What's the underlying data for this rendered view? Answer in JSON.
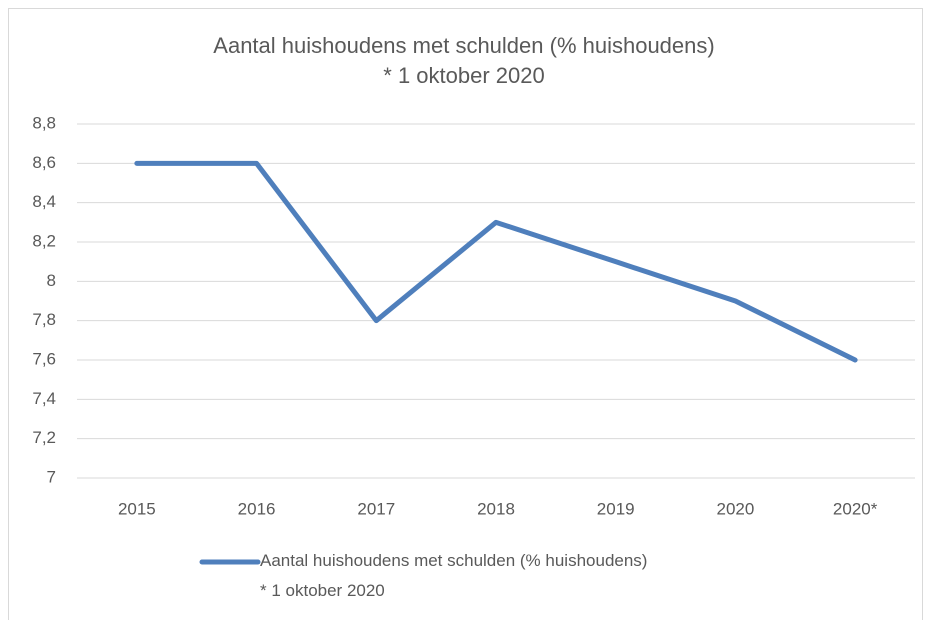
{
  "chart_data": {
    "type": "line",
    "title": "Aantal huishoudens met schulden (% huishoudens)\n* 1 oktober 2020",
    "categories": [
      "2015",
      "2016",
      "2017",
      "2018",
      "2019",
      "2020",
      "2020*"
    ],
    "series": [
      {
        "name": "Aantal huishoudens met schulden (% huishoudens)\n* 1 oktober 2020",
        "color": "#4f7fbc",
        "values": [
          8.6,
          8.6,
          7.8,
          8.3,
          8.1,
          7.9,
          7.6
        ]
      }
    ],
    "ylim": [
      7,
      8.8
    ],
    "yticks": [
      7,
      {
        "value": 7.2,
        "label": "7,2"
      },
      {
        "value": 7.4,
        "label": "7,4"
      },
      {
        "value": 7.6,
        "label": "7,6"
      },
      {
        "value": 7.8,
        "label": "7,8"
      },
      8,
      {
        "value": 8.2,
        "label": "8,2"
      },
      {
        "value": 8.4,
        "label": "8,4"
      },
      {
        "value": 8.6,
        "label": "8,6"
      },
      {
        "value": 8.8,
        "label": "8,8"
      }
    ],
    "grid": true,
    "legend": "bottom"
  }
}
